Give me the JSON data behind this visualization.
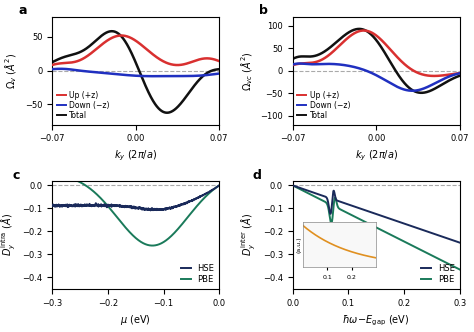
{
  "panel_labels": [
    "a",
    "b",
    "c",
    "d"
  ],
  "panel_label_fontsize": 9,
  "panel_label_fontweight": "bold",
  "background_color": "#ffffff",
  "grid_color": "#aaaaaa",
  "ab_kx_min": -0.07,
  "ab_kx_max": 0.07,
  "ab_kx_n": 400,
  "ab_yticks_a": [
    -50,
    0,
    50
  ],
  "ab_yticks_b": [
    -100,
    -50,
    0,
    50,
    100
  ],
  "ab_xticks": [
    -0.07,
    0,
    0.07
  ],
  "ab_xlabel": "$k_y$ $(2\\pi/a)$",
  "a_ylabel": "$\\Omega_v$ ($\\AA^2$)",
  "b_ylabel": "$\\Omega_{vc}$ ($\\AA^2$)",
  "a_ylim": [
    -80,
    80
  ],
  "b_ylim": [
    -120,
    120
  ],
  "legend_up": "Up (+z)",
  "legend_down": "Down (−z)",
  "legend_total": "Total",
  "color_up": "#d93030",
  "color_down": "#2030c0",
  "color_total": "#111111",
  "c_xlim": [
    -0.3,
    0.0
  ],
  "c_ylim": [
    -0.45,
    0.02
  ],
  "c_xticks": [
    -0.3,
    -0.2,
    -0.1,
    0.0
  ],
  "c_yticks": [
    -0.4,
    -0.3,
    -0.2,
    -0.1,
    0.0
  ],
  "c_xlabel": "$\\mu$ (eV)",
  "c_ylabel": "$D_y^{\\mathrm{intra}}$ ($\\AA$)",
  "d_xlim": [
    0.0,
    0.3
  ],
  "d_ylim": [
    -0.45,
    0.02
  ],
  "d_xticks": [
    0.0,
    0.1,
    0.2,
    0.3
  ],
  "d_yticks": [
    -0.4,
    -0.3,
    -0.2,
    -0.1,
    0.0
  ],
  "d_xlabel": "$\\hbar\\omega\\!-\\!E_{\\mathrm{gap}}$ (eV)",
  "d_ylabel": "$D_y^{\\mathrm{inter}}$ ($\\AA$)",
  "legend_HSE": "HSE",
  "legend_PBE": "PBE",
  "color_HSE": "#1a2a5a",
  "color_PBE": "#1a7a5a",
  "color_inset": "#e09020",
  "linewidth_ab": 1.8,
  "linewidth_cd": 1.4
}
